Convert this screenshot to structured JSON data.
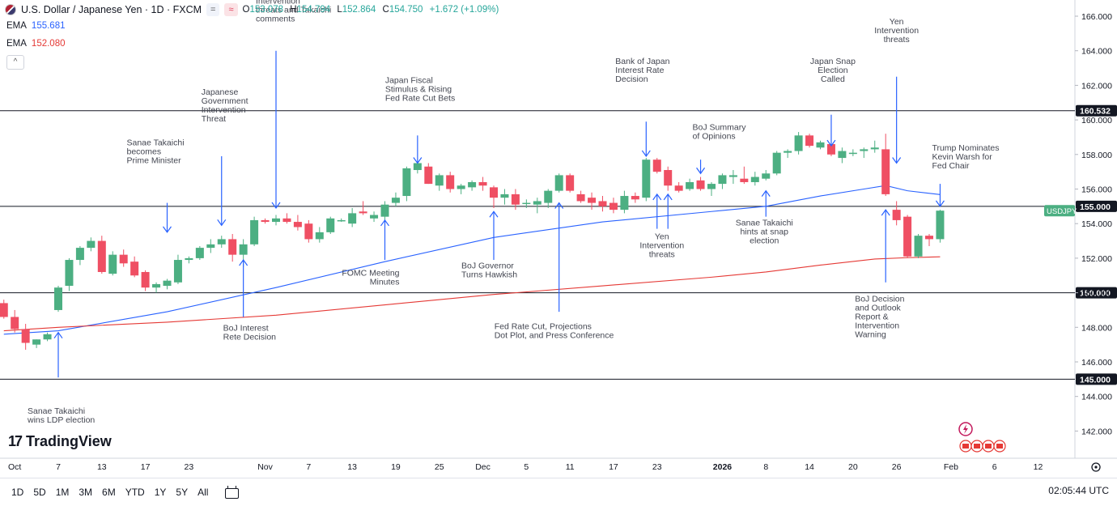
{
  "header": {
    "title": "U.S. Dollar / Japanese Yen · 1D · FXCM",
    "btn_equal": "=",
    "btn_approx": "≈",
    "ohlc": [
      {
        "k": "O",
        "v": "153.078"
      },
      {
        "k": "H",
        "v": "154.794"
      },
      {
        "k": "L",
        "v": "152.864"
      },
      {
        "k": "C",
        "v": "154.750"
      },
      {
        "k": "",
        "v": "+1.672 (+1.09%)"
      }
    ]
  },
  "indicators": [
    {
      "label": "EMA",
      "value": "155.681",
      "color": "#2962ff"
    },
    {
      "label": "EMA",
      "value": "152.080",
      "color": "#e53935"
    }
  ],
  "collapse_glyph": "^",
  "logo": {
    "mark": "17",
    "text": "TradingView"
  },
  "toolbar": {
    "timeframes": [
      "1D",
      "5D",
      "1M",
      "3M",
      "6M",
      "YTD",
      "1Y",
      "5Y",
      "All"
    ],
    "clock": "02:05:44 UTC"
  },
  "colors": {
    "up": "#4caf82",
    "down": "#ef4f63",
    "arrow": "#2962ff",
    "ema_fast": "#2962ff",
    "ema_slow": "#e53935"
  },
  "chart_data": {
    "type": "candlestick",
    "symbol": "USDJPY",
    "ylim": [
      140.6,
      166.8
    ],
    "y_ticks": [
      142,
      144,
      146,
      148,
      150,
      152,
      154,
      156,
      158,
      160,
      162,
      164,
      166
    ],
    "y_tick_labels": [
      "142.000",
      "144.000",
      "146.000",
      "148.000",
      "150.000",
      "152.000",
      "154.000",
      "156.000",
      "158.000",
      "160.000",
      "162.000",
      "164.000",
      "166.000"
    ],
    "time_ticks": [
      {
        "d": -4,
        "label": "Oct",
        "bold": false
      },
      {
        "d": 0,
        "label": "7",
        "bold": false
      },
      {
        "d": 4,
        "label": "13",
        "bold": false
      },
      {
        "d": 8,
        "label": "17",
        "bold": false
      },
      {
        "d": 12,
        "label": "23",
        "bold": false
      },
      {
        "d": 19,
        "label": "Nov",
        "bold": false
      },
      {
        "d": 23,
        "label": "7",
        "bold": false
      },
      {
        "d": 27,
        "label": "13",
        "bold": false
      },
      {
        "d": 31,
        "label": "19",
        "bold": false
      },
      {
        "d": 35,
        "label": "25",
        "bold": false
      },
      {
        "d": 39,
        "label": "Dec",
        "bold": false
      },
      {
        "d": 43,
        "label": "5",
        "bold": false
      },
      {
        "d": 47,
        "label": "11",
        "bold": false
      },
      {
        "d": 51,
        "label": "17",
        "bold": false
      },
      {
        "d": 55,
        "label": "23",
        "bold": false
      },
      {
        "d": 61,
        "label": "2026",
        "bold": true
      },
      {
        "d": 65,
        "label": "8",
        "bold": false
      },
      {
        "d": 69,
        "label": "14",
        "bold": false
      },
      {
        "d": 73,
        "label": "20",
        "bold": false
      },
      {
        "d": 77,
        "label": "26",
        "bold": false
      },
      {
        "d": 82,
        "label": "Feb",
        "bold": false
      },
      {
        "d": 86,
        "label": "6",
        "bold": false
      },
      {
        "d": 90,
        "label": "12",
        "bold": false
      }
    ],
    "x_first_index": -5,
    "candles": [
      [
        -5,
        149.4,
        149.6,
        148.5,
        148.6
      ],
      [
        -4,
        148.6,
        149.0,
        147.7,
        147.9
      ],
      [
        -3,
        147.9,
        148.2,
        146.7,
        147.1
      ],
      [
        -2,
        147.0,
        147.3,
        146.8,
        147.3
      ],
      [
        -1,
        147.3,
        147.7,
        147.2,
        147.6
      ],
      [
        0,
        149.0,
        150.4,
        148.9,
        150.3
      ],
      [
        1,
        150.4,
        152.0,
        150.1,
        151.9
      ],
      [
        2,
        151.9,
        152.7,
        151.6,
        152.6
      ],
      [
        3,
        152.6,
        153.2,
        152.4,
        153.0
      ],
      [
        4,
        153.0,
        153.3,
        151.1,
        151.2
      ],
      [
        5,
        151.1,
        152.4,
        151.0,
        152.2
      ],
      [
        6,
        152.2,
        152.5,
        151.5,
        151.7
      ],
      [
        7,
        151.8,
        152.1,
        150.9,
        151.0
      ],
      [
        8,
        151.2,
        151.3,
        150.1,
        150.3
      ],
      [
        9,
        150.3,
        150.6,
        150.0,
        150.5
      ],
      [
        10,
        150.4,
        150.8,
        150.2,
        150.7
      ],
      [
        11,
        150.6,
        152.2,
        150.5,
        151.9
      ],
      [
        12,
        151.9,
        152.1,
        151.7,
        152.0
      ],
      [
        13,
        152.0,
        152.7,
        151.9,
        152.6
      ],
      [
        14,
        152.6,
        153.1,
        152.3,
        152.8
      ],
      [
        15,
        152.8,
        153.3,
        152.6,
        153.1
      ],
      [
        16,
        153.1,
        153.4,
        151.8,
        152.2
      ],
      [
        17,
        152.2,
        153.1,
        151.5,
        152.8
      ],
      [
        18,
        152.8,
        154.4,
        152.7,
        154.2
      ],
      [
        19,
        154.2,
        154.3,
        154.0,
        154.1
      ],
      [
        20,
        154.1,
        154.5,
        153.9,
        154.3
      ],
      [
        21,
        154.3,
        154.6,
        154.0,
        154.1
      ],
      [
        22,
        154.1,
        154.5,
        153.6,
        153.8
      ],
      [
        23,
        154.0,
        154.2,
        152.9,
        153.1
      ],
      [
        24,
        153.1,
        153.8,
        152.9,
        153.5
      ],
      [
        25,
        153.5,
        154.4,
        153.4,
        154.3
      ],
      [
        26,
        154.2,
        154.3,
        154.1,
        154.2
      ],
      [
        27,
        154.0,
        154.9,
        153.8,
        154.6
      ],
      [
        28,
        154.7,
        155.3,
        154.5,
        154.6
      ],
      [
        29,
        154.3,
        154.7,
        154.1,
        154.5
      ],
      [
        30,
        154.4,
        155.3,
        154.1,
        155.1
      ],
      [
        31,
        155.2,
        155.8,
        155.0,
        155.5
      ],
      [
        32,
        155.6,
        157.3,
        155.3,
        157.2
      ],
      [
        33,
        157.1,
        157.6,
        156.9,
        157.5
      ],
      [
        34,
        157.3,
        157.5,
        156.3,
        156.3
      ],
      [
        35,
        156.2,
        156.9,
        155.9,
        156.8
      ],
      [
        36,
        156.8,
        157.0,
        155.8,
        156.0
      ],
      [
        37,
        156.0,
        156.3,
        155.7,
        156.2
      ],
      [
        38,
        156.1,
        156.5,
        155.9,
        156.4
      ],
      [
        39,
        156.4,
        156.7,
        155.9,
        156.2
      ],
      [
        40,
        156.1,
        156.2,
        154.9,
        155.5
      ],
      [
        41,
        155.5,
        156.0,
        155.1,
        155.7
      ],
      [
        42,
        155.7,
        156.0,
        154.8,
        155.1
      ],
      [
        43,
        155.2,
        155.4,
        154.9,
        155.2
      ],
      [
        44,
        155.1,
        155.5,
        154.6,
        155.3
      ],
      [
        45,
        155.2,
        156.0,
        154.9,
        155.9
      ],
      [
        46,
        155.9,
        156.9,
        155.8,
        156.8
      ],
      [
        47,
        156.8,
        156.9,
        155.8,
        155.9
      ],
      [
        48,
        155.7,
        155.9,
        155.2,
        155.3
      ],
      [
        49,
        155.5,
        155.8,
        154.8,
        155.2
      ],
      [
        50,
        155.3,
        155.6,
        154.7,
        155.0
      ],
      [
        51,
        155.2,
        155.5,
        154.6,
        154.8
      ],
      [
        52,
        154.8,
        155.9,
        154.6,
        155.6
      ],
      [
        53,
        155.6,
        155.8,
        155.2,
        155.4
      ],
      [
        54,
        155.5,
        157.8,
        155.3,
        157.7
      ],
      [
        55,
        157.7,
        157.8,
        156.9,
        157.0
      ],
      [
        56,
        157.1,
        157.3,
        155.9,
        156.2
      ],
      [
        57,
        156.2,
        156.4,
        155.8,
        155.9
      ],
      [
        58,
        156.0,
        156.6,
        155.9,
        156.4
      ],
      [
        59,
        156.5,
        156.7,
        155.9,
        156.0
      ],
      [
        60,
        156.0,
        156.4,
        155.6,
        156.3
      ],
      [
        61,
        156.3,
        156.9,
        156.0,
        156.8
      ],
      [
        62,
        156.7,
        157.1,
        156.3,
        156.8
      ],
      [
        63,
        156.6,
        157.3,
        156.3,
        156.4
      ],
      [
        64,
        156.4,
        157.0,
        156.2,
        156.7
      ],
      [
        65,
        156.6,
        157.1,
        156.5,
        156.9
      ],
      [
        66,
        156.9,
        158.2,
        156.8,
        158.1
      ],
      [
        67,
        158.1,
        158.3,
        157.8,
        158.2
      ],
      [
        68,
        158.2,
        159.3,
        158.0,
        159.1
      ],
      [
        69,
        159.1,
        159.2,
        158.4,
        158.5
      ],
      [
        70,
        158.4,
        158.8,
        158.3,
        158.7
      ],
      [
        71,
        158.6,
        158.7,
        157.9,
        158.0
      ],
      [
        72,
        157.8,
        158.4,
        157.5,
        158.2
      ],
      [
        73,
        158.1,
        158.3,
        157.9,
        158.1
      ],
      [
        74,
        158.2,
        158.4,
        157.8,
        158.3
      ],
      [
        75,
        158.3,
        158.8,
        158.1,
        158.4
      ],
      [
        76,
        158.3,
        159.2,
        155.6,
        155.7
      ],
      [
        77,
        154.8,
        155.3,
        153.9,
        154.2
      ],
      [
        78,
        154.4,
        154.5,
        152.0,
        152.1
      ],
      [
        79,
        152.1,
        153.4,
        152.0,
        153.3
      ],
      [
        80,
        153.3,
        153.4,
        152.7,
        153.1
      ],
      [
        81,
        153.1,
        154.8,
        152.9,
        154.75
      ]
    ],
    "series": [
      {
        "name": "EMA",
        "color": "#2962ff",
        "x": [
          -5,
          0,
          10,
          20,
          30,
          40,
          50,
          60,
          65,
          70,
          74,
          76,
          78,
          81
        ],
        "values": [
          147.6,
          147.8,
          148.9,
          150.3,
          151.8,
          153.2,
          154.1,
          154.7,
          155.0,
          155.6,
          156.0,
          156.2,
          155.9,
          155.68
        ]
      },
      {
        "name": "EMA",
        "color": "#e53935",
        "x": [
          -5,
          0,
          10,
          20,
          30,
          40,
          50,
          60,
          65,
          70,
          75,
          78,
          81
        ],
        "values": [
          147.8,
          148.0,
          148.3,
          148.7,
          149.3,
          149.9,
          150.4,
          150.9,
          151.2,
          151.6,
          151.95,
          152.03,
          152.08
        ]
      }
    ],
    "horizontal_lines": [
      {
        "value": 160.532,
        "label": "160.532"
      },
      {
        "value": 155.0,
        "label": "155.000"
      },
      {
        "value": 150.0,
        "label": "150.000"
      },
      {
        "value": 145.0,
        "label": "145.000"
      }
    ],
    "price_tag": {
      "label": "USDJPY",
      "value": 154.75
    },
    "annotations": [
      {
        "text": [
          "Sanae Takaichi",
          "wins LDP election"
        ],
        "x": 0,
        "tip": 147.7,
        "tail": 145.1,
        "dir": "up",
        "text_side": "below",
        "text_y": 143.0,
        "anchor": "start",
        "tx_off": -38
      },
      {
        "text": [
          "BoJ Interest",
          "Rete Decision"
        ],
        "x": 17,
        "tip": 151.9,
        "tail": 148.6,
        "dir": "up",
        "text_side": "below",
        "text_y": 147.8,
        "anchor": "start",
        "tx_off": -25
      },
      {
        "text": [
          "Sanae Takaichi",
          "becomes",
          "Prime Minister"
        ],
        "x": 10,
        "tip": 153.5,
        "tail": 155.2,
        "dir": "down",
        "text_side": "above",
        "text_y": 157.5,
        "anchor": "start",
        "tx_off": -50
      },
      {
        "text": [
          "Japanese",
          "Government",
          "Intervention",
          "Threat"
        ],
        "x": 15,
        "tip": 153.9,
        "tail": 157.9,
        "dir": "down",
        "text_side": "above",
        "text_y": 159.9,
        "anchor": "start",
        "tx_off": -25
      },
      {
        "text": [
          "Intervention",
          "threats and Takaichi",
          "comments"
        ],
        "x": 20,
        "tip": 154.9,
        "tail": 164.0,
        "dir": "down",
        "text_side": "above",
        "text_y": 165.7,
        "anchor": "start",
        "tx_off": -25
      },
      {
        "text": [
          "FOMC Meeting",
          "Minutes"
        ],
        "x": 30,
        "tip": 154.2,
        "tail": 151.9,
        "dir": "up",
        "text_side": "below",
        "text_y": 151.0,
        "anchor": "end",
        "tx_off": 18
      },
      {
        "text": [
          "Japan Fiscal",
          "Stimulus & Rising",
          "Fed Rate Cut Bets"
        ],
        "x": 33,
        "tip": 157.5,
        "tail": 159.1,
        "dir": "down",
        "text_side": "above",
        "text_y": 161.1,
        "anchor": "start",
        "tx_off": -40
      },
      {
        "text": [
          "BoJ Governor",
          "Turns Hawkish"
        ],
        "x": 40,
        "tip": 154.7,
        "tail": 151.9,
        "dir": "up",
        "text_side": "below",
        "text_y": 151.4,
        "anchor": "start",
        "tx_off": -40
      },
      {
        "text": [
          "Fed Rate Cut, Projections",
          "Dot Plot, and Press Conference"
        ],
        "x": 46,
        "tip": 155.2,
        "tail": 148.9,
        "dir": "up",
        "text_side": "below",
        "text_y": 147.9,
        "anchor": "start",
        "tx_off": -80
      },
      {
        "text": [
          "Bank of Japan",
          "Interest Rate",
          "Decision"
        ],
        "x": 54,
        "tip": 157.9,
        "tail": 159.9,
        "dir": "down",
        "text_side": "above",
        "text_y": 162.2,
        "anchor": "start",
        "tx_off": -38
      },
      {
        "text": [
          "Yen",
          "Intervention",
          "threats"
        ],
        "x": 55,
        "tip": 155.7,
        "tail": 153.7,
        "dir": "up",
        "text_side": "below",
        "text_y": 153.1,
        "anchor": "middle",
        "tx_off": 6
      },
      {
        "text": [],
        "x": 56,
        "tip": 155.7,
        "tail": 153.7,
        "dir": "up",
        "text_side": "none",
        "text_y": 0,
        "anchor": "middle",
        "tx_off": 0
      },
      {
        "text": [
          "BoJ Summary",
          "of Opinions"
        ],
        "x": 59,
        "tip": 156.9,
        "tail": 157.7,
        "dir": "down",
        "text_side": "above",
        "text_y": 158.9,
        "anchor": "start",
        "tx_off": -10
      },
      {
        "text": [
          "Sanae Takaichi",
          "hints at snap",
          "election"
        ],
        "x": 65,
        "tip": 155.9,
        "tail": 154.4,
        "dir": "up",
        "text_side": "below",
        "text_y": 153.9,
        "anchor": "middle",
        "tx_off": -2
      },
      {
        "text": [
          "Japan Snap",
          "Election",
          "Called"
        ],
        "x": 71,
        "tip": 158.5,
        "tail": 160.3,
        "dir": "down",
        "text_side": "above",
        "text_y": 162.2,
        "anchor": "middle",
        "tx_off": 2
      },
      {
        "text": [
          "Yen",
          "Intervention",
          "threats"
        ],
        "x": 77,
        "tip": 157.5,
        "tail": 162.5,
        "dir": "down",
        "text_side": "above",
        "text_y": 164.5,
        "anchor": "middle",
        "tx_off": 0
      },
      {
        "text": [
          "BoJ Decision",
          "and Outlook",
          "Report &",
          "Intervention",
          "Warning"
        ],
        "x": 76,
        "tip": 154.8,
        "tail": 150.6,
        "dir": "up",
        "text_side": "below",
        "text_y": 149.5,
        "anchor": "start",
        "tx_off": -38
      },
      {
        "text": [
          "Trump Nominates",
          "Kevin Warsh for",
          "Fed Chair"
        ],
        "x": 81,
        "tip": 155.0,
        "tail": 156.3,
        "dir": "down",
        "text_side": "above",
        "text_y": 157.2,
        "anchor": "start",
        "tx_off": -10
      }
    ]
  }
}
